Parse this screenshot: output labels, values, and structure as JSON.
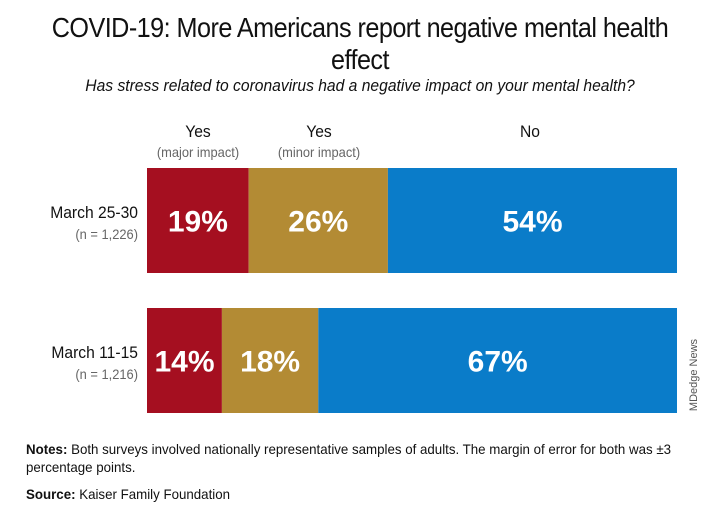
{
  "title": "COVID-19: More Americans report negative mental health effect",
  "subtitle": "Has stress related to coronavirus had a negative impact on your mental health?",
  "chart_data": {
    "type": "bar",
    "orientation": "horizontal-stacked-100",
    "categories": [
      {
        "label": "March 25-30",
        "sublabel": "(n = 1,226)"
      },
      {
        "label": "March 11-15",
        "sublabel": "(n = 1,216)"
      }
    ],
    "series": [
      {
        "name": "Yes",
        "subname": "(major impact)",
        "color": "#a50f20",
        "values": [
          19,
          14
        ],
        "labels": [
          "19%",
          "14%"
        ]
      },
      {
        "name": "Yes",
        "subname": "(minor impact)",
        "color": "#b38b34",
        "values": [
          26,
          18
        ],
        "labels": [
          "26%",
          "18%"
        ]
      },
      {
        "name": "No",
        "subname": "",
        "color": "#0a7cc9",
        "values": [
          54,
          67
        ],
        "labels": [
          "54%",
          "67%"
        ]
      }
    ],
    "xlim": [
      0,
      99
    ]
  },
  "watermark": "MDedge News",
  "notes": {
    "label": "Notes:",
    "text": " Both surveys involved nationally representative samples of adults. The margin of error for both was ±3 percentage points."
  },
  "source": {
    "label": "Source:",
    "text": " Kaiser Family Foundation"
  }
}
